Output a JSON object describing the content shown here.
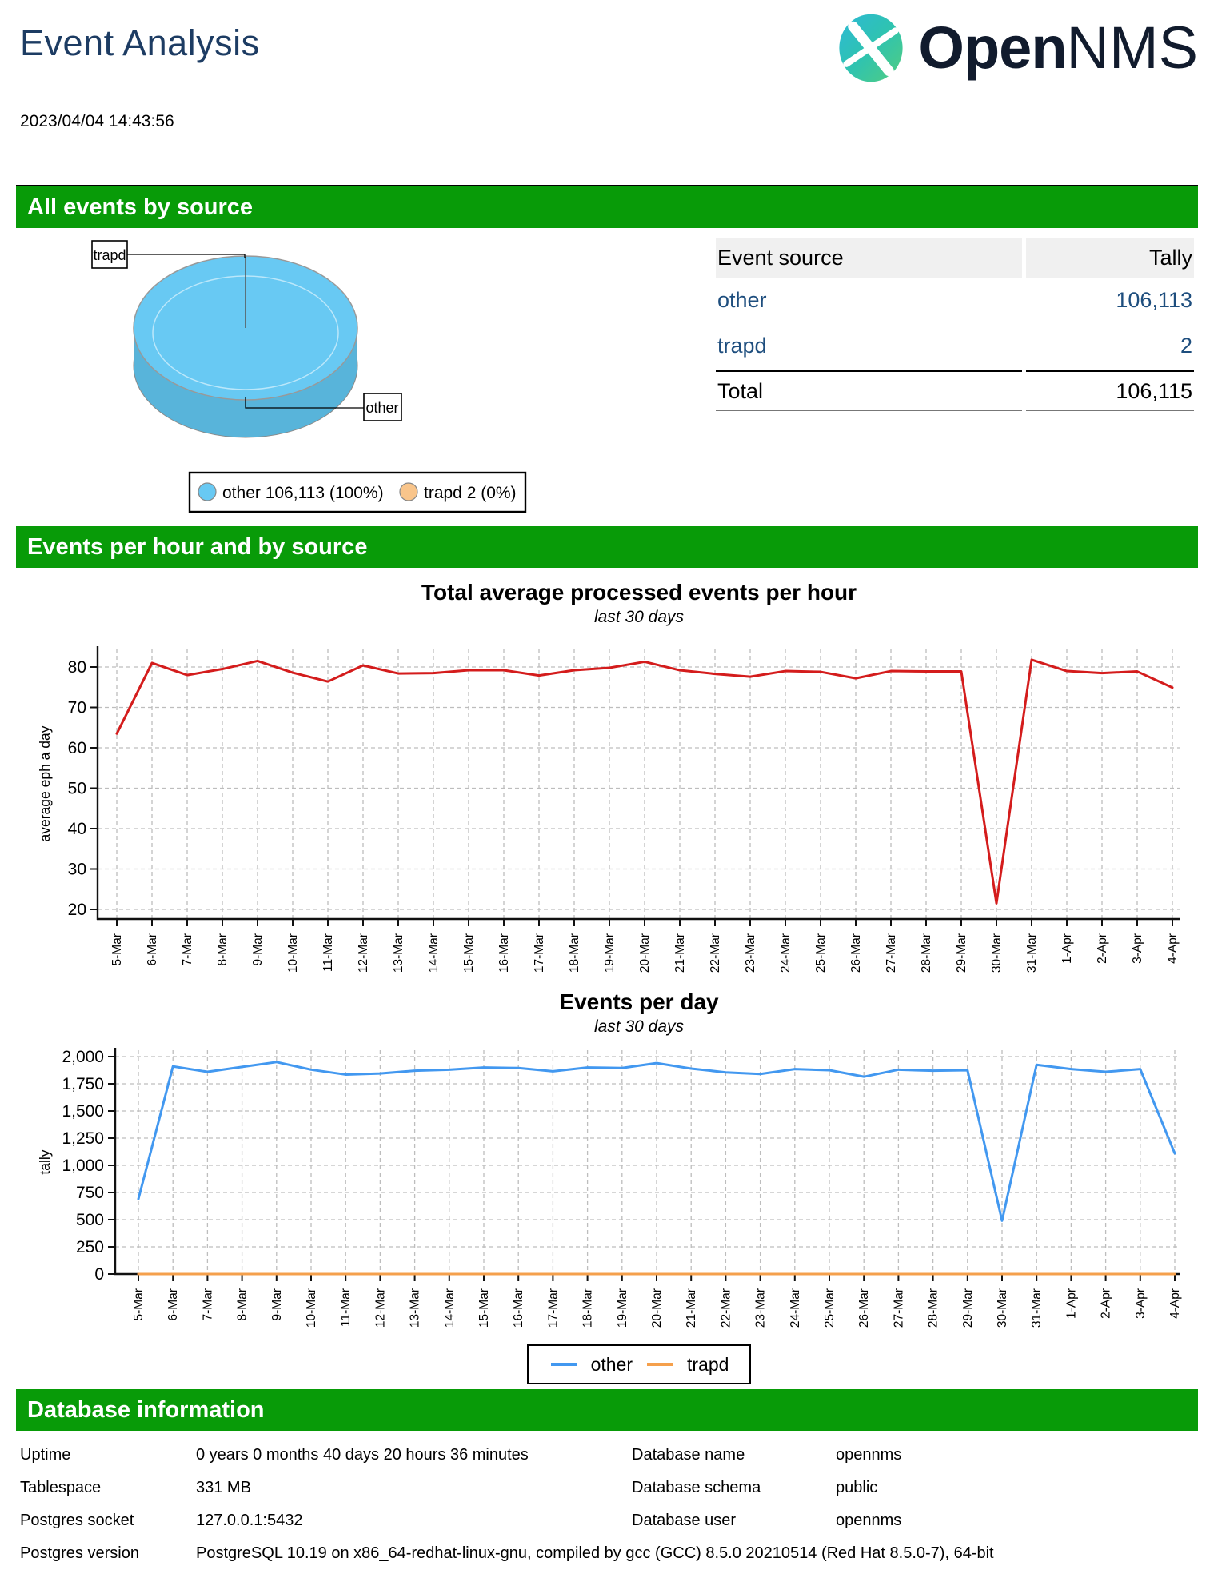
{
  "colors": {
    "banner_green": "#089b08",
    "title_navy": "#1d3c63",
    "link_blue": "#1e4e7e",
    "logo_navy": "#111b2d",
    "pie_top": "#68c9f3",
    "pie_side": "#58b4da",
    "legend_other_swatch": "#68c9f3",
    "legend_trapd_swatch": "#f9c58b",
    "line_red": "#d41c1c",
    "line_blue": "#4298f0",
    "line_orange": "#f5a04c"
  },
  "header": {
    "title": "Event Analysis",
    "logo_open": "Open",
    "logo_nms": "NMS"
  },
  "timestamp": "2023/04/04 14:43:56",
  "events_by_source": {
    "banner": "All events by source",
    "pie_callouts": {
      "trapd": "trapd",
      "other": "other"
    },
    "pie_legend": {
      "other": "other 106,113 (100%)",
      "trapd": "trapd 2 (0%)"
    },
    "table": {
      "col1": "Event source",
      "col2": "Tally",
      "rows": [
        {
          "source": "other",
          "tally": "106,113"
        },
        {
          "source": "trapd",
          "tally": "2"
        }
      ],
      "total_label": "Total",
      "total_value": "106,115"
    }
  },
  "events_per_hour": {
    "banner": "Events per hour and by source"
  },
  "database": {
    "banner": "Database information",
    "rows": [
      {
        "label": "Uptime",
        "value": "0 years 0 months 40 days 20 hours 36 minutes",
        "label2": "Database name",
        "value2": "opennms"
      },
      {
        "label": "Tablespace",
        "value": "331 MB",
        "label2": "Database schema",
        "value2": "public"
      },
      {
        "label": "Postgres socket",
        "value": "127.0.0.1:5432",
        "label2": "Database user",
        "value2": "opennms"
      },
      {
        "label": "Postgres version",
        "value": "PostgreSQL 10.19 on x86_64-redhat-linux-gnu, compiled by gcc (GCC) 8.5.0 20210514 (Red Hat 8.5.0-7), 64-bit"
      }
    ]
  },
  "chart_data": [
    {
      "type": "line",
      "title": "Total average processed events per hour",
      "subtitle": "last 30 days",
      "xlabel": "",
      "ylabel": "average eph a day",
      "ylim": [
        17,
        85
      ],
      "yticks": [
        20,
        30,
        40,
        50,
        60,
        70,
        80
      ],
      "grid": true,
      "legend_position": "none",
      "categories": [
        "5-Mar",
        "6-Mar",
        "7-Mar",
        "8-Mar",
        "9-Mar",
        "10-Mar",
        "11-Mar",
        "12-Mar",
        "13-Mar",
        "14-Mar",
        "15-Mar",
        "16-Mar",
        "17-Mar",
        "18-Mar",
        "19-Mar",
        "20-Mar",
        "21-Mar",
        "22-Mar",
        "23-Mar",
        "24-Mar",
        "25-Mar",
        "26-Mar",
        "27-Mar",
        "28-Mar",
        "29-Mar",
        "30-Mar",
        "31-Mar",
        "1-Apr",
        "2-Apr",
        "3-Apr",
        "4-Apr"
      ],
      "series": [
        {
          "name": "total",
          "color": "#d41c1c",
          "values": [
            63.5,
            81,
            78,
            79.5,
            81.5,
            78.6,
            76.4,
            80.4,
            78.4,
            78.5,
            79.2,
            79.2,
            77.9,
            79.2,
            79.8,
            81.3,
            79.2,
            78.3,
            77.6,
            79,
            78.8,
            77.2,
            79,
            78.9,
            78.9,
            21.5,
            81.8,
            79,
            78.5,
            78.9,
            74.9
          ]
        }
      ]
    },
    {
      "type": "line",
      "title": "Events per day",
      "subtitle": "last 30 days",
      "xlabel": "",
      "ylabel": "tally",
      "ylim": [
        0,
        2100
      ],
      "yticks": [
        0,
        250,
        500,
        750,
        1000,
        1250,
        1500,
        1750,
        2000
      ],
      "ytick_labels": [
        "0",
        "250",
        "500",
        "750",
        "1,000",
        "1,250",
        "1,500",
        "1,750",
        "2,000"
      ],
      "grid": true,
      "legend_position": "bottom",
      "categories": [
        "5-Mar",
        "6-Mar",
        "7-Mar",
        "8-Mar",
        "9-Mar",
        "10-Mar",
        "11-Mar",
        "12-Mar",
        "13-Mar",
        "14-Mar",
        "15-Mar",
        "16-Mar",
        "17-Mar",
        "18-Mar",
        "19-Mar",
        "20-Mar",
        "21-Mar",
        "22-Mar",
        "23-Mar",
        "24-Mar",
        "25-Mar",
        "26-Mar",
        "27-Mar",
        "28-Mar",
        "29-Mar",
        "30-Mar",
        "31-Mar",
        "1-Apr",
        "2-Apr",
        "3-Apr",
        "4-Apr"
      ],
      "series": [
        {
          "name": "trapd",
          "color": "#f5a04c",
          "values": [
            0,
            0,
            0,
            0,
            0,
            0,
            0,
            0,
            0,
            0,
            0,
            0,
            0,
            0,
            0,
            0,
            0,
            0,
            0,
            0,
            0,
            0,
            0,
            0,
            0,
            0,
            0,
            0,
            0,
            0,
            0
          ]
        },
        {
          "name": "other",
          "color": "#4298f0",
          "values": [
            690,
            1910,
            1860,
            1905,
            1950,
            1880,
            1835,
            1845,
            1870,
            1880,
            1900,
            1895,
            1865,
            1900,
            1895,
            1940,
            1890,
            1855,
            1840,
            1885,
            1875,
            1815,
            1880,
            1870,
            1875,
            490,
            1925,
            1885,
            1860,
            1885,
            1110
          ]
        }
      ]
    }
  ]
}
